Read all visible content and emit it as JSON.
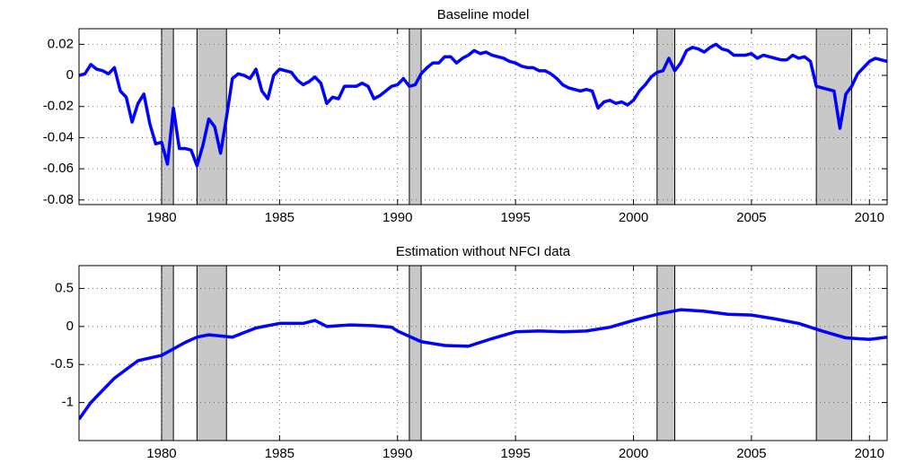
{
  "chart_data": [
    {
      "type": "line",
      "title": "Baseline model",
      "x": [
        1976.5,
        1976.75,
        1977,
        1977.25,
        1977.5,
        1977.75,
        1978,
        1978.25,
        1978.5,
        1978.75,
        1979,
        1979.25,
        1979.5,
        1979.75,
        1980,
        1980.25,
        1980.5,
        1980.75,
        1981,
        1981.25,
        1981.5,
        1981.75,
        1982,
        1982.25,
        1982.5,
        1982.75,
        1983,
        1983.25,
        1983.5,
        1983.75,
        1984,
        1984.25,
        1984.5,
        1984.75,
        1985,
        1985.25,
        1985.5,
        1985.75,
        1986,
        1986.25,
        1986.5,
        1986.75,
        1987,
        1987.25,
        1987.5,
        1987.75,
        1988,
        1988.25,
        1988.5,
        1988.75,
        1989,
        1989.25,
        1989.5,
        1989.75,
        1990,
        1990.25,
        1990.5,
        1990.75,
        1991,
        1991.25,
        1991.5,
        1991.75,
        1992,
        1992.25,
        1992.5,
        1992.75,
        1993,
        1993.25,
        1993.5,
        1993.75,
        1994,
        1994.25,
        1994.5,
        1994.75,
        1995,
        1995.25,
        1995.5,
        1995.75,
        1996,
        1996.25,
        1996.5,
        1996.75,
        1997,
        1997.25,
        1997.5,
        1997.75,
        1998,
        1998.25,
        1998.5,
        1998.75,
        1999,
        1999.25,
        1999.5,
        1999.75,
        2000,
        2000.25,
        2000.5,
        2000.75,
        2001,
        2001.25,
        2001.5,
        2001.75,
        2002,
        2002.25,
        2002.5,
        2002.75,
        2003,
        2003.25,
        2003.5,
        2003.75,
        2004,
        2004.25,
        2004.5,
        2004.75,
        2005,
        2005.25,
        2005.5,
        2005.75,
        2006,
        2006.25,
        2006.5,
        2006.75,
        2007,
        2007.25,
        2007.5,
        2007.75,
        2008,
        2008.25,
        2008.5,
        2008.75,
        2009,
        2009.25,
        2009.5,
        2009.75,
        2010,
        2010.25,
        2010.5,
        2010.75
      ],
      "series": [
        {
          "color": "#0000ff",
          "values": [
            0,
            0.001,
            0.007,
            0.004,
            0.003,
            0.001,
            0.005,
            -0.01,
            -0.014,
            -0.03,
            -0.018,
            -0.012,
            -0.031,
            -0.044,
            -0.043,
            -0.057,
            -0.021,
            -0.047,
            -0.047,
            -0.048,
            -0.058,
            -0.045,
            -0.028,
            -0.033,
            -0.05,
            -0.027,
            -0.002,
            0.001,
            0,
            -0.002,
            0.004,
            -0.01,
            -0.015,
            0,
            0.004,
            0.003,
            0.002,
            -0.003,
            -0.006,
            -0.004,
            -0.001,
            -0.005,
            -0.018,
            -0.014,
            -0.015,
            -0.007,
            -0.007,
            -0.007,
            -0.005,
            -0.007,
            -0.015,
            -0.013,
            -0.01,
            -0.007,
            -0.006,
            -0.002,
            -0.007,
            -0.006,
            0.001,
            0.005,
            0.008,
            0.008,
            0.012,
            0.012,
            0.008,
            0.011,
            0.013,
            0.016,
            0.014,
            0.015,
            0.013,
            0.012,
            0.011,
            0.009,
            0.008,
            0.006,
            0.005,
            0.005,
            0.003,
            0.003,
            0.001,
            -0.002,
            -0.006,
            -0.008,
            -0.009,
            -0.01,
            -0.009,
            -0.01,
            -0.021,
            -0.017,
            -0.016,
            -0.018,
            -0.017,
            -0.019,
            -0.016,
            -0.01,
            -0.006,
            -0.001,
            0.002,
            0.003,
            0.011,
            0.003,
            0.008,
            0.016,
            0.018,
            0.017,
            0.015,
            0.018,
            0.02,
            0.017,
            0.016,
            0.013,
            0.013,
            0.013,
            0.014,
            0.011,
            0.013,
            0.012,
            0.011,
            0.01,
            0.01,
            0.013,
            0.011,
            0.012,
            0.009,
            -0.007,
            -0.008,
            -0.009,
            -0.01,
            -0.034,
            -0.012,
            -0.007,
            0.001,
            0.005,
            0.009,
            0.011,
            0.01,
            0.009
          ]
        }
      ],
      "recessions": [
        [
          1980,
          1980.5
        ],
        [
          1981.5,
          1982.75
        ],
        [
          1990.5,
          1991
        ],
        [
          2001,
          2001.75
        ],
        [
          2007.75,
          2009.25
        ]
      ],
      "recession_color": "#c8c8c8",
      "xlim": [
        1976.5,
        2010.75
      ],
      "xticks": [
        1980,
        1985,
        1990,
        1995,
        2000,
        2005,
        2010
      ],
      "ylim": [
        -0.083,
        0.03
      ],
      "yticks": [
        0.02,
        0,
        -0.02,
        -0.04,
        -0.06,
        -0.08
      ],
      "grid": true
    },
    {
      "type": "line",
      "title": "Estimation without NFCI data",
      "x": [
        1976.5,
        1977,
        1978,
        1979,
        1980,
        1981,
        1981.5,
        1982,
        1983,
        1984,
        1985,
        1986,
        1986.5,
        1987,
        1988,
        1989,
        1989.75,
        1990,
        1991,
        1992,
        1993,
        1994,
        1995,
        1996,
        1997,
        1998,
        1999,
        2000,
        2001,
        2002,
        2003,
        2004,
        2005,
        2006,
        2007,
        2008,
        2009,
        2010,
        2010.75
      ],
      "series": [
        {
          "color": "#0000ff",
          "values": [
            -1.22,
            -1.0,
            -0.68,
            -0.45,
            -0.38,
            -0.21,
            -0.14,
            -0.11,
            -0.14,
            -0.02,
            0.04,
            0.04,
            0.08,
            0.0,
            0.02,
            0.01,
            -0.01,
            -0.06,
            -0.2,
            -0.25,
            -0.26,
            -0.16,
            -0.07,
            -0.06,
            -0.07,
            -0.06,
            -0.01,
            0.08,
            0.16,
            0.22,
            0.2,
            0.16,
            0.15,
            0.1,
            0.04,
            -0.06,
            -0.15,
            -0.17,
            -0.14
          ]
        }
      ],
      "recessions": [
        [
          1980,
          1980.5
        ],
        [
          1981.5,
          1982.75
        ],
        [
          1990.5,
          1991
        ],
        [
          2001,
          2001.75
        ],
        [
          2007.75,
          2009.25
        ]
      ],
      "recession_color": "#c8c8c8",
      "xlim": [
        1976.5,
        2010.75
      ],
      "xticks": [
        1980,
        1985,
        1990,
        1995,
        2000,
        2005,
        2010
      ],
      "ylim": [
        -1.5,
        0.8
      ],
      "yticks": [
        0.5,
        0,
        -0.5,
        -1
      ],
      "grid": true
    }
  ]
}
